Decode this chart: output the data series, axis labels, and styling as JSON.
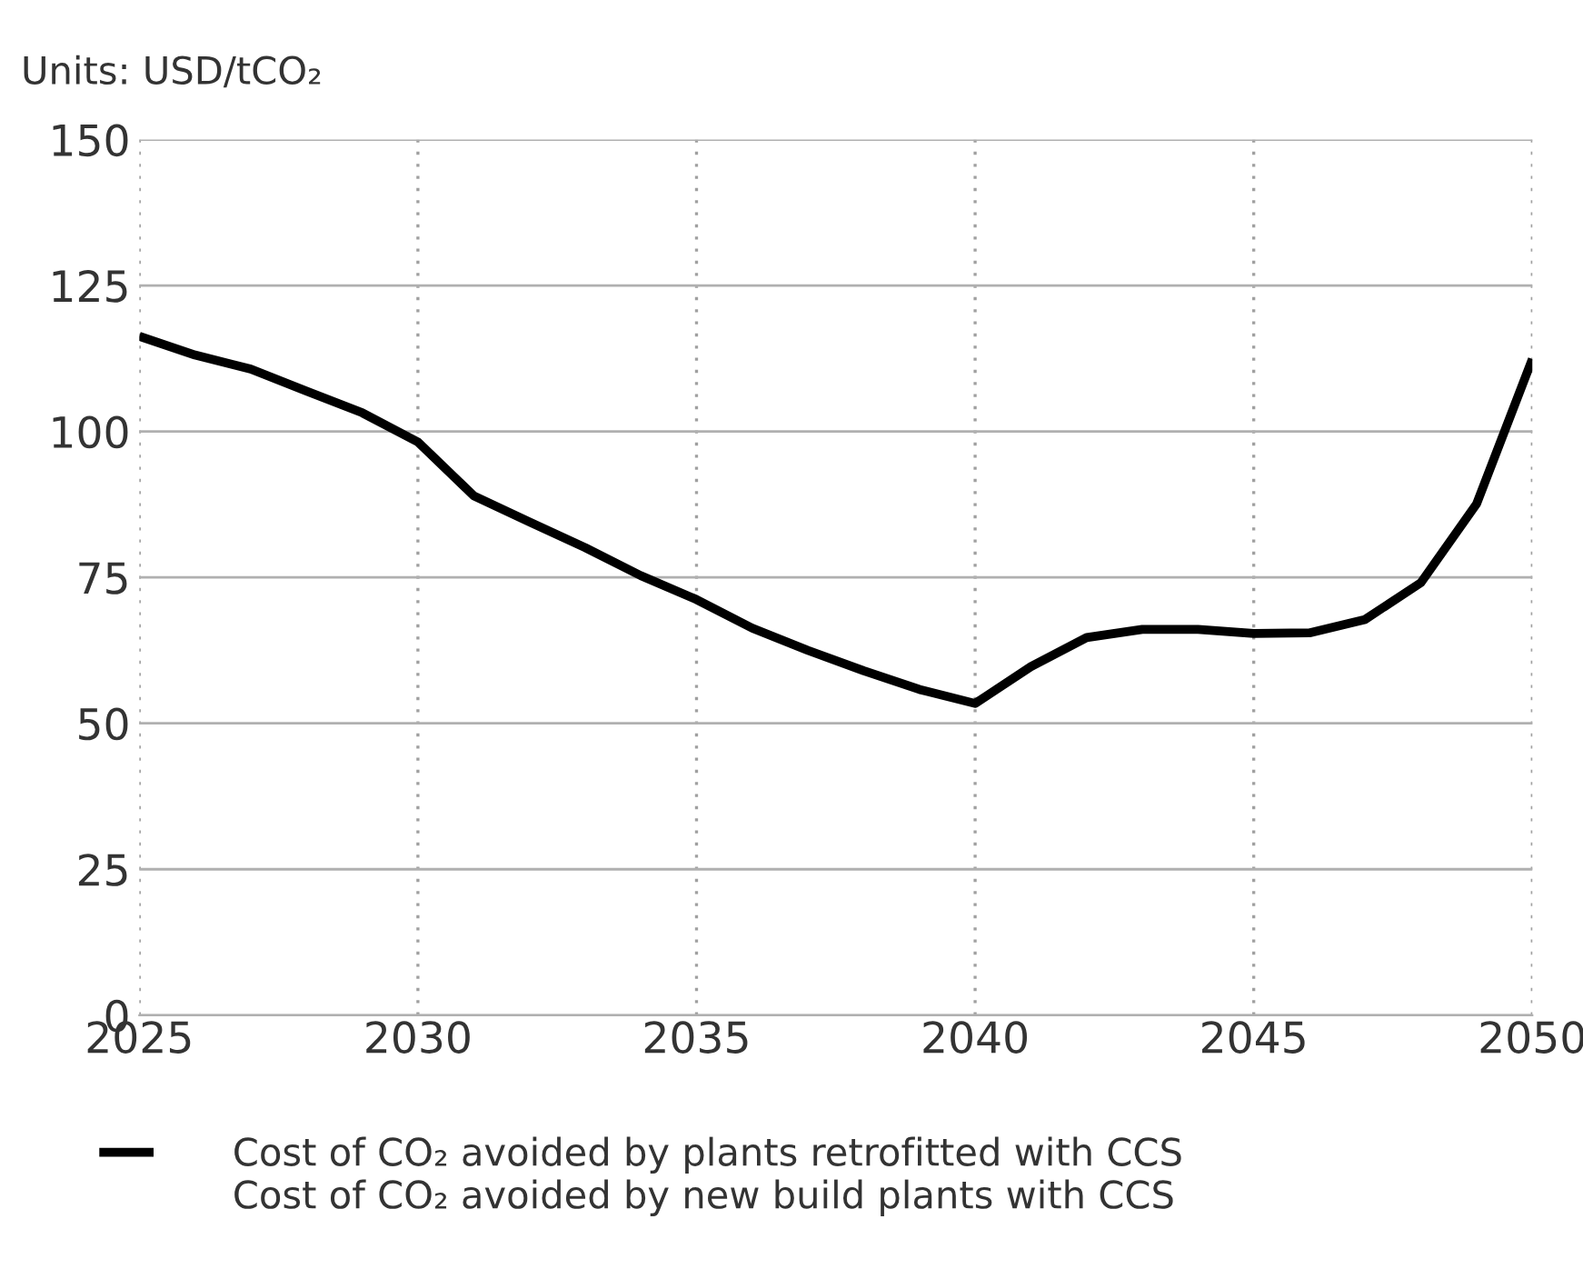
{
  "chart_data": {
    "type": "line",
    "title": "Units: USD/tCO₂",
    "x": [
      2025,
      2026,
      2027,
      2028,
      2029,
      2030,
      2031,
      2032,
      2033,
      2034,
      2035,
      2036,
      2037,
      2038,
      2039,
      2040,
      2041,
      2042,
      2043,
      2044,
      2045,
      2046,
      2047,
      2048,
      2049,
      2050
    ],
    "series": [
      {
        "name": "Cost of CO₂ avoided by plants retrofitted with CCS",
        "color": "#000000",
        "values": [
          116.3,
          113.1,
          110.7,
          106.9,
          103.2,
          98.2,
          89,
          84.5,
          80.1,
          75.3,
          71.2,
          66.3,
          62.5,
          59,
          55.8,
          53.4,
          59.7,
          64.7,
          66.1,
          66.1,
          65.4,
          65.5,
          67.8,
          74.1,
          87.6,
          112.4
        ]
      }
    ],
    "annotations": [
      "Cost of CO₂ avoided by new build plants with CCS"
    ],
    "xlim": [
      2025,
      2050
    ],
    "xticks": [
      2025,
      2030,
      2035,
      2040,
      2045,
      2050
    ],
    "ylim": [
      0,
      150
    ],
    "yticks": [
      0,
      25,
      50,
      75,
      100,
      125,
      150
    ],
    "grid": true,
    "legend": "bottom",
    "marker": "none",
    "line_style": "solid"
  }
}
